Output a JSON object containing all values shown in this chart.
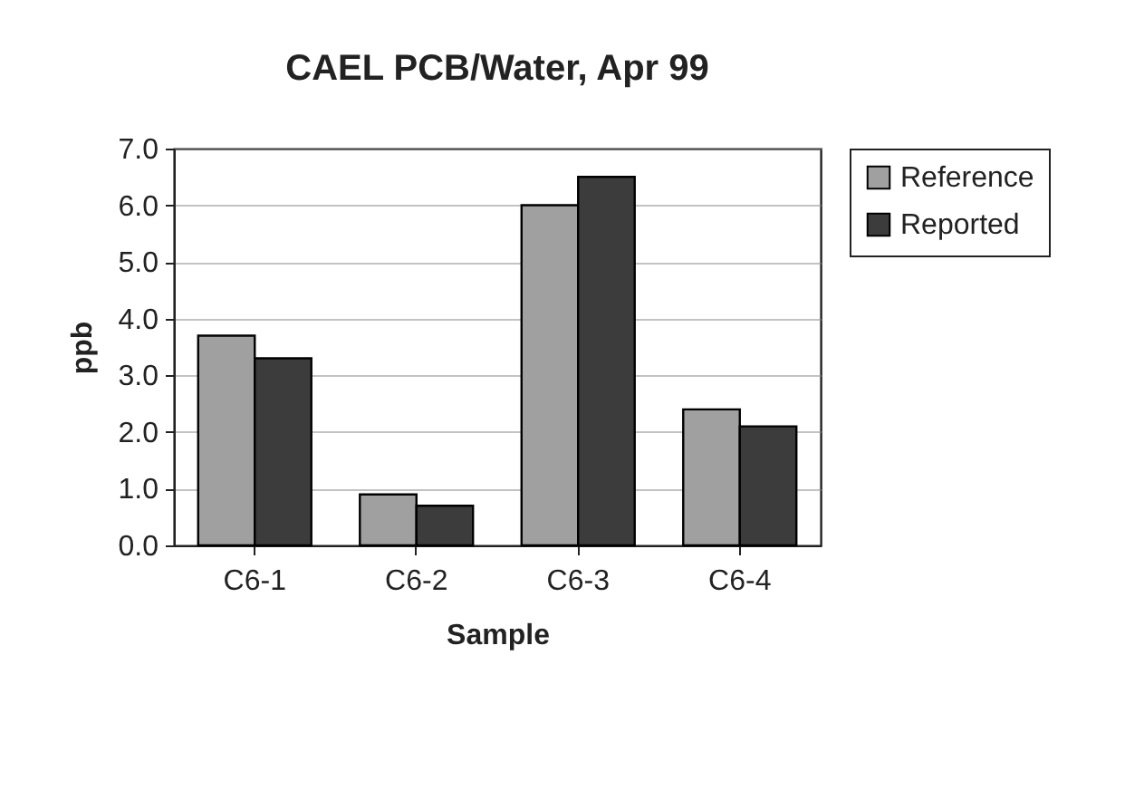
{
  "chart_data": {
    "type": "bar",
    "title": "CAEL PCB/Water, Apr 99",
    "xlabel": "Sample",
    "ylabel": "ppb",
    "categories": [
      "C6-1",
      "C6-2",
      "C6-3",
      "C6-4"
    ],
    "series": [
      {
        "name": "Reference",
        "color": "#a0a0a0",
        "values": [
          3.7,
          0.9,
          6.0,
          2.4
        ]
      },
      {
        "name": "Reported",
        "color": "#3c3c3c",
        "values": [
          3.3,
          0.7,
          6.5,
          2.1
        ]
      }
    ],
    "ylim": [
      0,
      7
    ],
    "yticks": [
      {
        "value": 0,
        "label": "0.0"
      },
      {
        "value": 1,
        "label": "1.0"
      },
      {
        "value": 2,
        "label": "2.0"
      },
      {
        "value": 3,
        "label": "3.0"
      },
      {
        "value": 4,
        "label": "4.0"
      },
      {
        "value": 5,
        "label": "5.0"
      },
      {
        "value": 6,
        "label": "6.0"
      },
      {
        "value": 7,
        "label": "7.0"
      }
    ],
    "grid": "y",
    "legend": "right"
  }
}
